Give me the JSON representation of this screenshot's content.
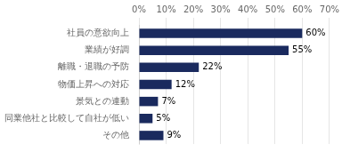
{
  "chart_data": {
    "type": "bar",
    "orientation": "horizontal",
    "categories": [
      "その他",
      "同業他社と比較して自社が低い",
      "景気との連動",
      "物価上昇への対応",
      "離職・退職の予防",
      "業績が好調",
      "社員の意欲向上"
    ],
    "values": [
      9,
      5,
      7,
      12,
      22,
      55,
      60
    ],
    "value_labels": [
      "9%",
      "5%",
      "7%",
      "12%",
      "22%",
      "55%",
      "60%"
    ],
    "color": "#1a2a5e",
    "xlim": [
      0,
      70
    ],
    "xticks": [
      {
        "value": 0,
        "label": "0%"
      },
      {
        "value": 10,
        "label": "10%"
      },
      {
        "value": 20,
        "label": "20%"
      },
      {
        "value": 30,
        "label": "30%"
      },
      {
        "value": 40,
        "label": "40%"
      },
      {
        "value": 50,
        "label": "50%"
      },
      {
        "value": 60,
        "label": "60%"
      },
      {
        "value": 70,
        "label": "70%"
      }
    ],
    "grid": true,
    "data_labels": true
  }
}
